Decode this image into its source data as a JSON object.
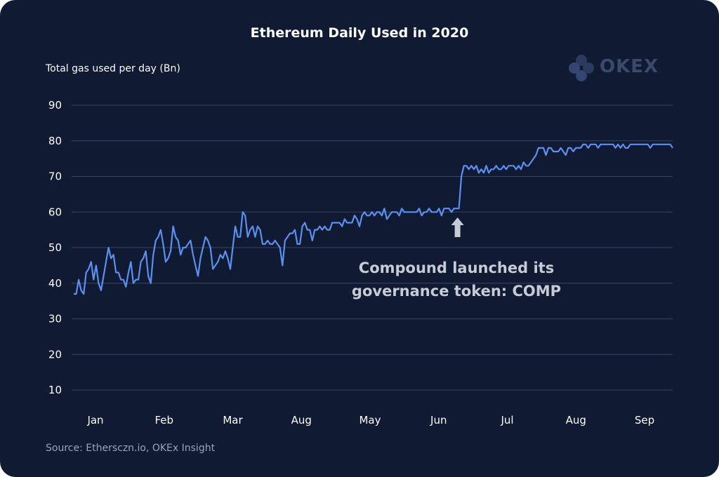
{
  "colors": {
    "background": "#101a33",
    "line": "#5b8ff0",
    "grid": "#3a4460",
    "text": "#ffffff",
    "muted": "#9aa3b8",
    "annotation": "#c6cbd6",
    "logo": "#3b4a6b"
  },
  "logo": {
    "text": "OKEX",
    "icon": "okex-logo-icon"
  },
  "source": "Source: Ethersczn.io, OKEx Insight",
  "chart_data": {
    "type": "line",
    "title": "Ethereum Daily Used in 2020",
    "ylabel": "Total gas used per day (Bn)",
    "xlabel": "",
    "ylim": [
      10,
      90
    ],
    "yticks": [
      10,
      20,
      30,
      40,
      50,
      60,
      70,
      80,
      90
    ],
    "grid": true,
    "xticks": [
      "Jan",
      "Feb",
      "Mar",
      "Aug",
      "May",
      "Jun",
      "Jul",
      "Aug",
      "Sep"
    ],
    "series": [
      {
        "values": [
          37,
          37,
          41,
          38,
          37,
          43,
          44,
          46,
          41,
          45,
          40,
          38,
          42,
          46,
          50,
          47,
          48,
          43,
          43,
          41,
          41,
          39,
          43,
          46,
          40,
          41,
          41,
          46,
          47,
          49,
          42,
          40,
          48,
          52,
          53,
          55,
          51,
          46,
          47,
          49,
          56,
          53,
          52,
          48,
          50,
          50,
          51,
          52,
          48,
          45,
          42,
          47,
          50,
          53,
          52,
          50,
          44,
          45,
          46,
          48,
          47,
          49,
          47,
          44,
          50,
          56,
          53,
          53,
          60,
          59,
          53,
          55,
          56,
          53,
          56,
          55,
          51,
          51,
          52,
          51,
          51,
          52,
          51,
          50,
          45,
          52,
          53,
          54,
          54,
          55,
          51,
          51,
          56,
          57,
          55,
          55,
          52,
          55,
          55,
          56,
          55,
          56,
          55,
          55,
          57,
          57,
          57,
          57,
          56,
          58,
          57,
          57,
          57,
          59,
          58,
          56,
          59,
          60,
          59,
          59,
          60,
          59,
          60,
          60,
          59,
          61,
          58,
          59,
          60,
          60,
          60,
          59,
          61,
          60,
          60,
          60,
          60,
          60,
          60,
          61,
          59,
          60,
          60,
          61,
          60,
          60,
          60,
          61,
          59,
          61,
          61,
          61,
          60,
          61,
          61,
          61,
          70,
          73,
          73,
          72,
          73,
          72,
          73,
          71,
          72,
          71,
          73,
          71,
          72,
          72,
          73,
          72,
          72,
          73,
          72,
          73,
          73,
          73,
          72,
          73,
          72,
          74,
          73,
          73,
          74,
          75,
          76,
          78,
          78,
          78,
          76,
          78,
          78,
          77,
          77,
          77,
          78,
          77,
          76,
          78,
          78,
          77,
          78,
          78,
          78,
          79,
          79,
          78,
          79,
          79,
          79,
          78,
          79,
          79,
          79,
          79,
          79,
          79,
          78,
          79,
          78,
          79,
          78,
          78,
          79,
          79,
          79,
          79,
          79,
          79,
          79,
          79,
          78,
          79,
          79,
          79,
          79,
          79,
          79,
          79,
          79,
          78
        ]
      }
    ],
    "annotation": {
      "lines": [
        "Compound launched its",
        "governance token: COMP"
      ],
      "arrow_at_index": 155
    }
  }
}
